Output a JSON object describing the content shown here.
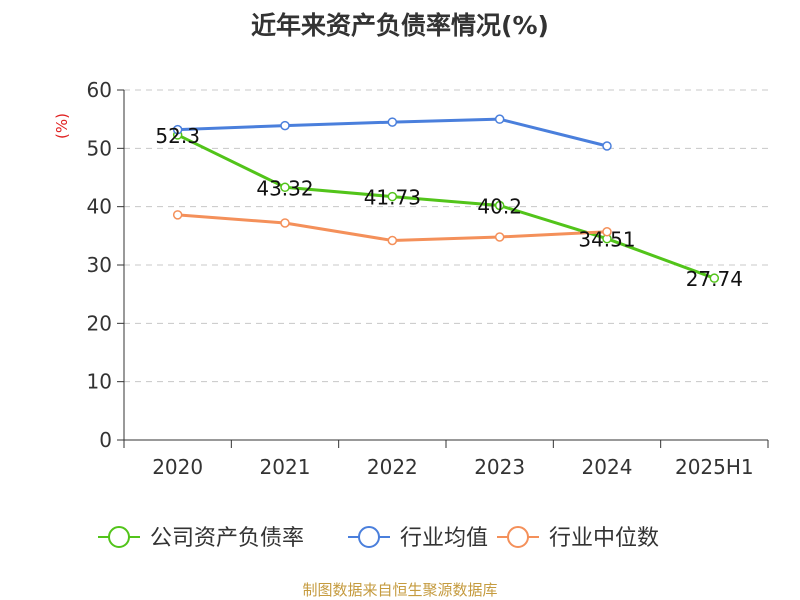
{
  "chart_data": {
    "type": "line",
    "title": "近年来资产负债率情况(%)",
    "ylabel": "(%)",
    "xlabel": "",
    "categories": [
      "2020",
      "2021",
      "2022",
      "2023",
      "2024",
      "2025H1"
    ],
    "y_ticks": [
      "0",
      "10",
      "20",
      "30",
      "40",
      "50",
      "60"
    ],
    "ylim": [
      0,
      60
    ],
    "grid": "horizontal dashed",
    "legend_position": "bottom",
    "series": [
      {
        "name": "公司资产负债率",
        "color": "#52c41a",
        "values": [
          52.3,
          43.32,
          41.73,
          40.2,
          34.51,
          27.74
        ],
        "labels": [
          "52.3",
          "43.32",
          "41.73",
          "40.2",
          "34.51",
          "27.74"
        ]
      },
      {
        "name": "行业均值",
        "color": "#4a7fdc",
        "values": [
          53.2,
          53.9,
          54.5,
          55.0,
          50.4,
          null
        ]
      },
      {
        "name": "行业中位数",
        "color": "#f4905a",
        "values": [
          38.6,
          37.2,
          34.2,
          34.8,
          35.7,
          null
        ]
      }
    ]
  },
  "source_note": "制图数据来自恒生聚源数据库"
}
